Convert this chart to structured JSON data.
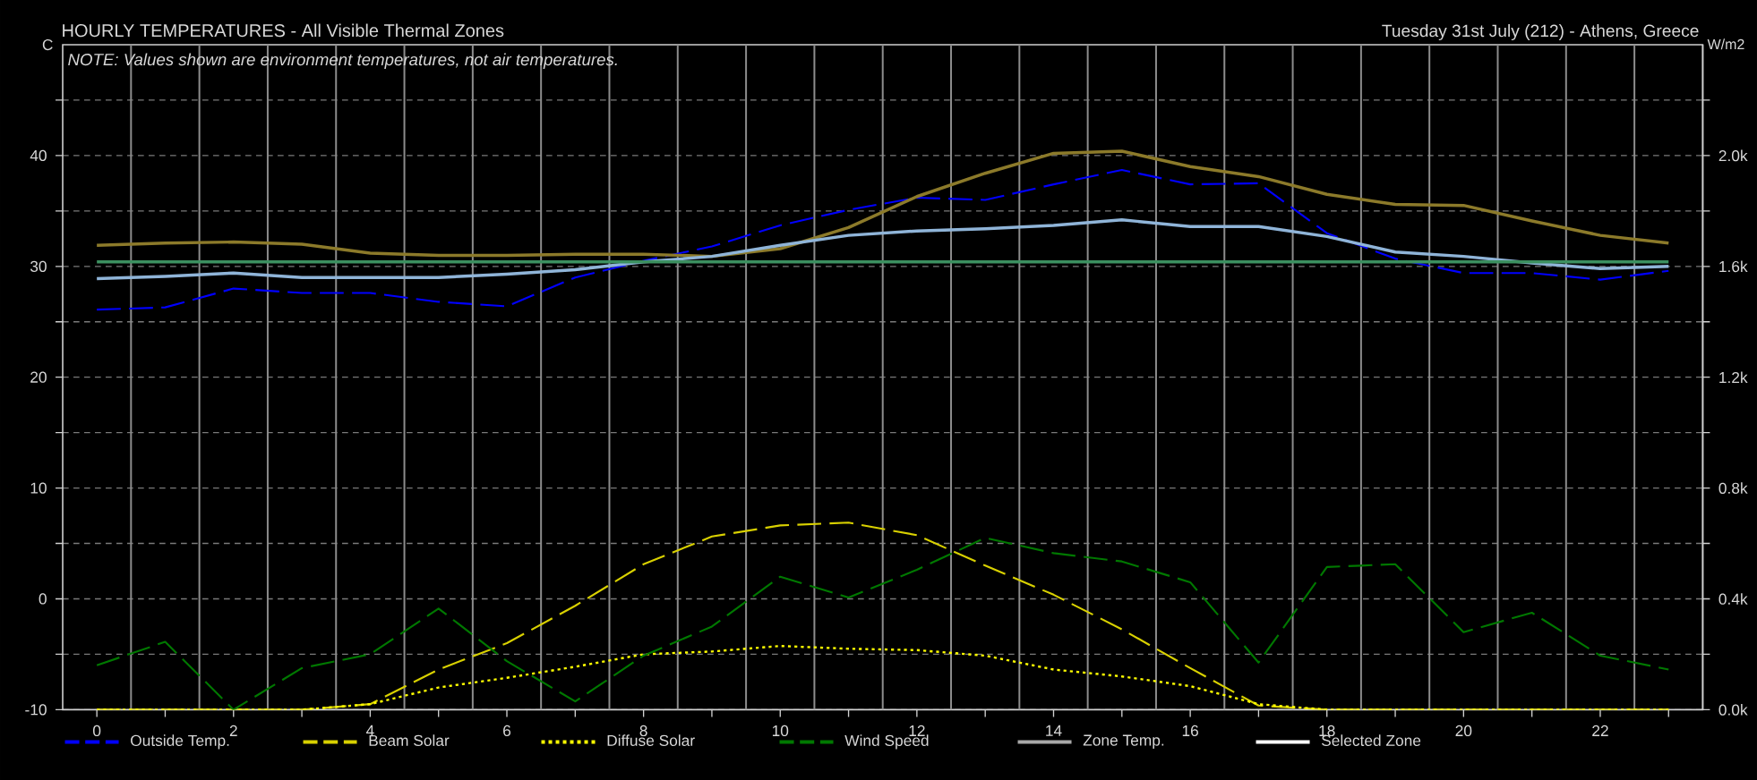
{
  "chart_data": {
    "type": "line",
    "title": "HOURLY TEMPERATURES - All Visible Thermal Zones",
    "subtitle": "Tuesday 31st July (212) - Athens, Greece",
    "ylabel": "C",
    "y2label": "W/m2",
    "annotations": [
      "NOTE: Values shown are environment temperatures, not air temperatures."
    ],
    "x": [
      0,
      1,
      2,
      3,
      4,
      5,
      6,
      7,
      8,
      9,
      10,
      11,
      12,
      13,
      14,
      15,
      16,
      17,
      18,
      19,
      20,
      21,
      22,
      23
    ],
    "xlim": [
      -0.5,
      23.5
    ],
    "xticks": [
      0,
      {
        "value": 1,
        "label": null
      },
      2,
      {
        "value": 3,
        "label": null
      },
      4,
      {
        "value": 5,
        "label": null
      },
      6,
      {
        "value": 7,
        "label": null
      },
      8,
      {
        "value": 9,
        "label": null
      },
      10,
      {
        "value": 11,
        "label": null
      },
      12,
      {
        "value": 13,
        "label": null
      },
      14,
      {
        "value": 15,
        "label": null
      },
      16,
      {
        "value": 17,
        "label": null
      },
      18,
      {
        "value": 19,
        "label": null
      },
      20,
      {
        "value": 21,
        "label": null
      },
      22,
      {
        "value": 23,
        "label": null
      }
    ],
    "ylim": [
      -10,
      50
    ],
    "yticks": [
      -10,
      {
        "value": -5,
        "label": null
      },
      0,
      {
        "value": 5,
        "label": null
      },
      10,
      {
        "value": 15,
        "label": null
      },
      20,
      {
        "value": 25,
        "label": null
      },
      30,
      {
        "value": 35,
        "label": null
      },
      40,
      {
        "value": 45,
        "label": null
      }
    ],
    "y2lim": [
      0,
      2400
    ],
    "y2ticks": [
      {
        "value": 0,
        "label": "0.0k"
      },
      {
        "value": 200,
        "label": null
      },
      {
        "value": 400,
        "label": "0.4k"
      },
      {
        "value": 600,
        "label": null
      },
      {
        "value": 800,
        "label": "0.8k"
      },
      {
        "value": 1000,
        "label": null
      },
      {
        "value": 1200,
        "label": "1.2k"
      },
      {
        "value": 1400,
        "label": null
      },
      {
        "value": 1600,
        "label": "1.6k"
      },
      {
        "value": 1800,
        "label": null
      },
      {
        "value": 2000,
        "label": "2.0k"
      },
      {
        "value": 2200,
        "label": null
      }
    ],
    "grid": "y",
    "ref_lines": [
      {
        "axis": "x",
        "value": 0.5,
        "color": "#8c8c8c"
      },
      {
        "axis": "x",
        "value": 1.5,
        "color": "#8c8c8c"
      },
      {
        "axis": "x",
        "value": 2.5,
        "color": "#8c8c8c"
      },
      {
        "axis": "x",
        "value": 3.5,
        "color": "#8c8c8c"
      },
      {
        "axis": "x",
        "value": 4.5,
        "color": "#8c8c8c"
      },
      {
        "axis": "x",
        "value": 5.5,
        "color": "#8c8c8c"
      },
      {
        "axis": "x",
        "value": 6.5,
        "color": "#8c8c8c"
      },
      {
        "axis": "x",
        "value": 7.5,
        "color": "#8c8c8c"
      },
      {
        "axis": "x",
        "value": 8.5,
        "color": "#8c8c8c"
      },
      {
        "axis": "x",
        "value": 9.5,
        "color": "#8c8c8c"
      },
      {
        "axis": "x",
        "value": 10.5,
        "color": "#8c8c8c"
      },
      {
        "axis": "x",
        "value": 11.5,
        "color": "#8c8c8c"
      },
      {
        "axis": "x",
        "value": 12.5,
        "color": "#8c8c8c"
      },
      {
        "axis": "x",
        "value": 13.5,
        "color": "#8c8c8c"
      },
      {
        "axis": "x",
        "value": 14.5,
        "color": "#8c8c8c"
      },
      {
        "axis": "x",
        "value": 15.5,
        "color": "#8c8c8c"
      },
      {
        "axis": "x",
        "value": 16.5,
        "color": "#8c8c8c"
      },
      {
        "axis": "x",
        "value": 17.5,
        "color": "#8c8c8c"
      },
      {
        "axis": "x",
        "value": 18.5,
        "color": "#8c8c8c"
      },
      {
        "axis": "x",
        "value": 19.5,
        "color": "#8c8c8c"
      },
      {
        "axis": "x",
        "value": 20.5,
        "color": "#8c8c8c"
      },
      {
        "axis": "x",
        "value": 21.5,
        "color": "#8c8c8c"
      },
      {
        "axis": "x",
        "value": 22.5,
        "color": "#8c8c8c"
      }
    ],
    "legend": "bottom",
    "marker": "none",
    "series": [
      {
        "name": "Outside Temp.",
        "color": "#0000ff",
        "line_style": "dashed",
        "values": [
          26.1,
          26.3,
          28.0,
          27.6,
          27.6,
          26.8,
          26.4,
          29.0,
          30.5,
          31.8,
          33.7,
          35.1,
          36.2,
          36.0,
          37.4,
          38.7,
          37.4,
          37.5,
          33.0,
          30.7,
          29.4,
          29.4,
          28.8,
          29.6
        ]
      },
      {
        "name": "Beam Solar",
        "color": "#d8d000",
        "line_style": "dashed",
        "axis": "y2",
        "values": [
          0,
          0,
          0,
          0,
          20,
          145,
          240,
          375,
          525,
          625,
          665,
          675,
          630,
          520,
          415,
          290,
          150,
          15,
          0,
          0,
          0,
          0,
          0,
          0
        ]
      },
      {
        "name": "Diffuse Solar",
        "color": "#ffff00",
        "line_style": "dotted",
        "axis": "y2",
        "values": [
          0,
          0,
          0,
          0,
          20,
          80,
          115,
          155,
          200,
          210,
          230,
          220,
          215,
          195,
          145,
          120,
          85,
          20,
          0,
          0,
          0,
          0,
          0,
          0
        ]
      },
      {
        "name": "Wind Speed",
        "color": "#007800",
        "line_style": "dashed",
        "axis": "y2",
        "values": [
          160,
          245,
          0,
          150,
          200,
          365,
          175,
          30,
          195,
          300,
          480,
          405,
          505,
          620,
          565,
          535,
          460,
          170,
          515,
          525,
          280,
          350,
          195,
          145
        ]
      },
      {
        "name": "Zone Temp.",
        "color": "#a8a8a8",
        "line_style": "solid",
        "values": [
          null,
          null,
          null,
          null,
          null,
          null,
          null,
          null,
          null,
          null,
          null,
          null,
          null,
          null,
          null,
          null,
          null,
          null,
          null,
          null,
          null,
          null,
          null,
          null
        ]
      },
      {
        "name": "Selected Zone",
        "color": "#ffffff",
        "line_style": "solid",
        "values": [
          null,
          null,
          null,
          null,
          null,
          null,
          null,
          null,
          null,
          null,
          null,
          null,
          null,
          null,
          null,
          null,
          null,
          null,
          null,
          null,
          null,
          null,
          null,
          null
        ]
      },
      {
        "color": "#8c7a2a",
        "line_style": "solid",
        "values": [
          31.9,
          32.1,
          32.2,
          32.0,
          31.2,
          31.0,
          31.0,
          31.1,
          31.1,
          30.9,
          31.6,
          33.5,
          36.3,
          38.4,
          40.2,
          40.4,
          39.0,
          38.1,
          36.5,
          35.6,
          35.5,
          34.1,
          32.8,
          32.1
        ]
      },
      {
        "color": "#8fb4d8",
        "line_style": "solid",
        "values": [
          28.9,
          29.1,
          29.4,
          29.0,
          29.0,
          29.0,
          29.3,
          29.7,
          30.4,
          30.9,
          31.9,
          32.8,
          33.2,
          33.4,
          33.7,
          34.2,
          33.6,
          33.6,
          32.7,
          31.3,
          30.9,
          30.3,
          29.8,
          30.0
        ]
      },
      {
        "color": "#3c9060",
        "line_style": "solid",
        "values": [
          30.4,
          30.4,
          30.4,
          30.4,
          30.4,
          30.4,
          30.4,
          30.4,
          30.4,
          30.4,
          30.4,
          30.4,
          30.4,
          30.4,
          30.4,
          30.4,
          30.4,
          30.4,
          30.4,
          30.4,
          30.4,
          30.4,
          30.4,
          30.4
        ]
      }
    ]
  }
}
